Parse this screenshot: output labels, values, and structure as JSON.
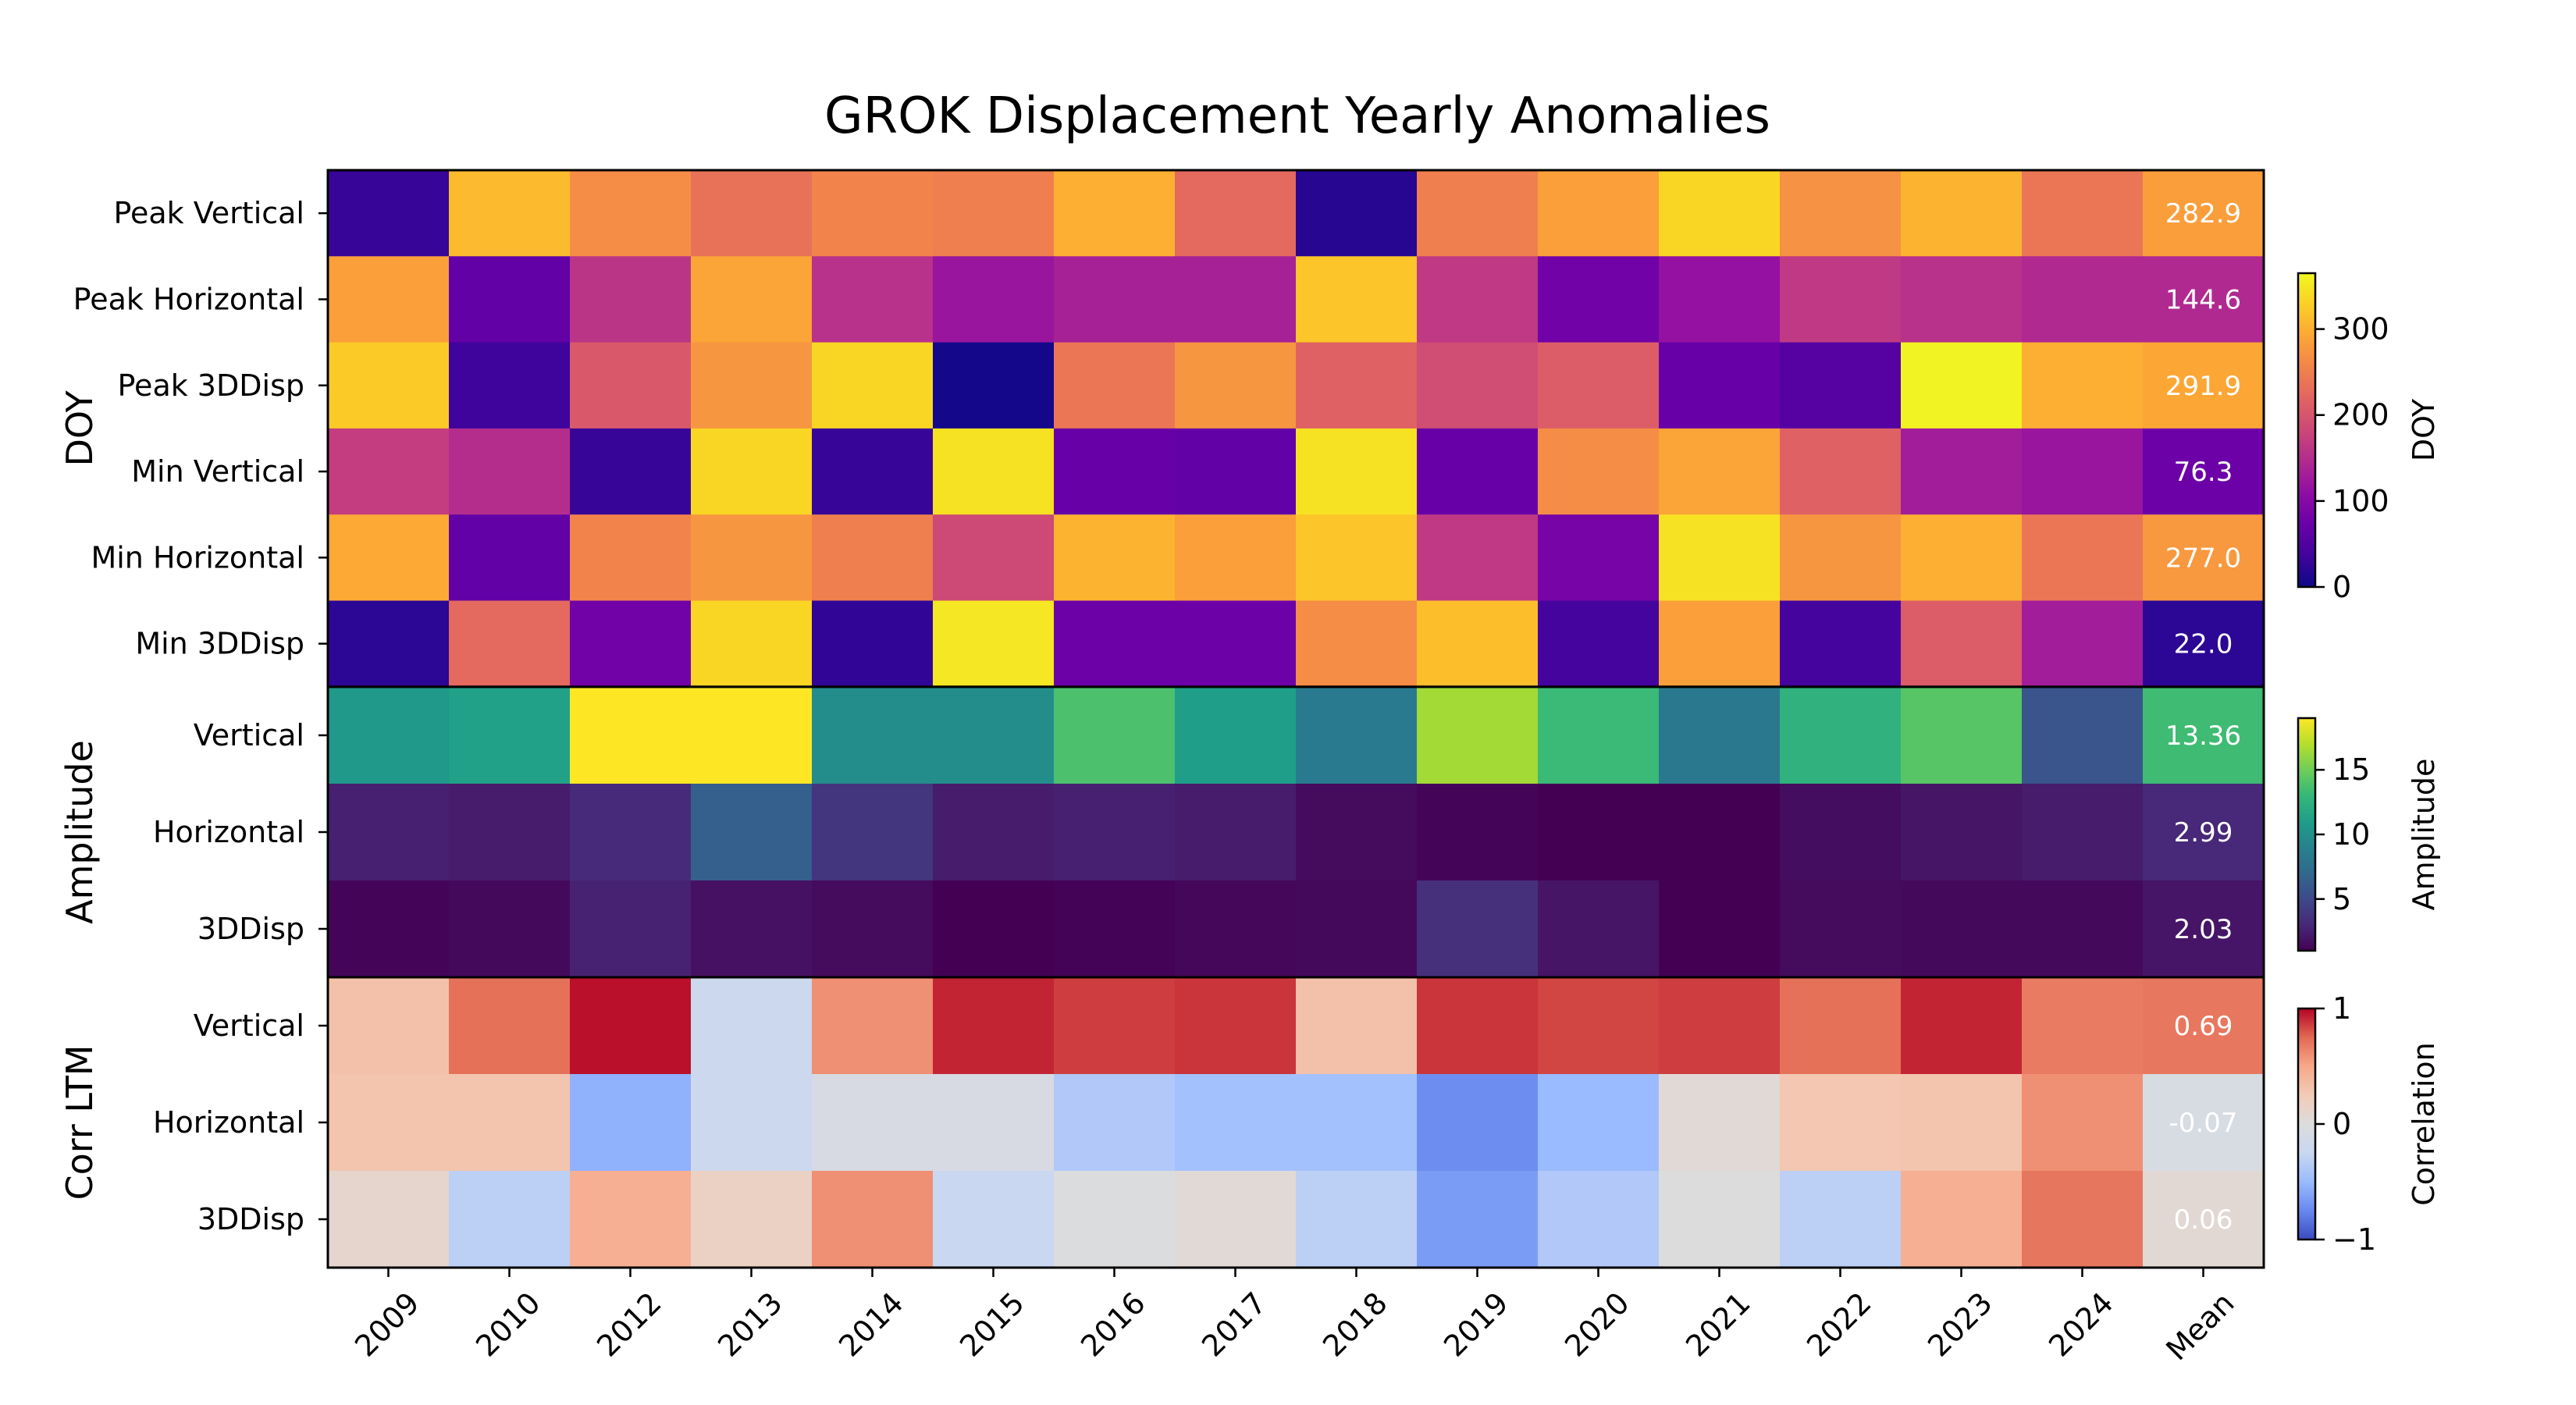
{
  "chart_data": {
    "type": "heatmap",
    "title": "GROK Displacement Yearly Anomalies",
    "columns": [
      "2009",
      "2010",
      "2012",
      "2013",
      "2014",
      "2015",
      "2016",
      "2017",
      "2018",
      "2019",
      "2020",
      "2021",
      "2022",
      "2023",
      "2024",
      "Mean"
    ],
    "panels": [
      {
        "label": "DOY",
        "colormap": "plasma",
        "vmin": 0,
        "vmax": 365,
        "colorbar_label": "DOY",
        "colorbar_ticks": [
          0,
          100,
          200,
          300
        ],
        "mean_format": 1,
        "rows": [
          {
            "label": "Peak Vertical",
            "values": [
              30,
              310,
              265,
              235,
              255,
              250,
              300,
              225,
              18,
              250,
              285,
              335,
              270,
              305,
              240,
              282.9
            ]
          },
          {
            "label": "Peak Horizontal",
            "values": [
              285,
              65,
              160,
              290,
              155,
              120,
              135,
              135,
              320,
              165,
              80,
              115,
              165,
              155,
              145,
              144.6
            ]
          },
          {
            "label": "Peak 3DDisp",
            "values": [
              325,
              35,
              205,
              275,
              335,
              5,
              240,
              275,
              215,
              190,
              210,
              70,
              55,
              360,
              300,
              291.9
            ]
          },
          {
            "label": "Min Vertical",
            "values": [
              170,
              150,
              30,
              335,
              30,
              345,
              70,
              65,
              345,
              70,
              265,
              290,
              215,
              130,
              120,
              76.3
            ]
          },
          {
            "label": "Min Horizontal",
            "values": [
              295,
              65,
              255,
              275,
              250,
              185,
              305,
              285,
              320,
              165,
              85,
              345,
              275,
              300,
              240,
              277.0
            ]
          },
          {
            "label": "Min 3DDisp",
            "values": [
              22,
              225,
              80,
              335,
              25,
              350,
              75,
              75,
              265,
              315,
              40,
              285,
              40,
              210,
              130,
              22.0
            ]
          }
        ]
      },
      {
        "label": "Amplitude",
        "colormap": "viridis",
        "vmin": 1,
        "vmax": 19,
        "colorbar_label": "Amplitude",
        "colorbar_ticks": [
          5,
          10,
          15
        ],
        "mean_format": 2,
        "rows": [
          {
            "label": "Vertical",
            "values": [
              10.6,
              11.2,
              19.0,
              19.0,
              9.8,
              9.8,
              13.8,
              11.0,
              8.4,
              16.5,
              13.2,
              8.2,
              12.5,
              14.2,
              5.8,
              13.36
            ]
          },
          {
            "label": "Horizontal",
            "values": [
              2.6,
              2.4,
              3.2,
              6.4,
              3.8,
              2.4,
              2.6,
              2.4,
              1.5,
              1.2,
              1.0,
              1.0,
              1.6,
              2.0,
              2.4,
              2.99
            ]
          },
          {
            "label": "3DDisp",
            "values": [
              1.2,
              1.4,
              2.7,
              1.8,
              1.5,
              1.0,
              1.1,
              1.3,
              1.4,
              3.5,
              2.0,
              1.0,
              1.5,
              1.4,
              1.4,
              2.03
            ]
          }
        ]
      },
      {
        "label": "Corr LTM",
        "colormap": "coolwarm",
        "vmin": -1,
        "vmax": 1,
        "colorbar_label": "Correlation",
        "colorbar_ticks": [
          -1,
          0,
          1
        ],
        "mean_format": 2,
        "rows": [
          {
            "label": "Vertical",
            "values": [
              0.32,
              0.72,
              0.97,
              -0.22,
              0.6,
              0.92,
              0.86,
              0.88,
              0.32,
              0.88,
              0.84,
              0.86,
              0.72,
              0.92,
              0.68,
              0.69
            ]
          },
          {
            "label": "Horizontal",
            "values": [
              0.3,
              0.3,
              -0.55,
              -0.22,
              -0.08,
              -0.08,
              -0.38,
              -0.45,
              -0.45,
              -0.72,
              -0.5,
              0.05,
              0.28,
              0.3,
              0.6,
              -0.07
            ]
          },
          {
            "label": "3DDisp",
            "values": [
              0.1,
              -0.32,
              0.45,
              0.16,
              0.6,
              -0.25,
              -0.02,
              0.04,
              -0.32,
              -0.65,
              -0.38,
              0.0,
              -0.32,
              0.45,
              0.7,
              0.06
            ]
          }
        ]
      }
    ]
  }
}
